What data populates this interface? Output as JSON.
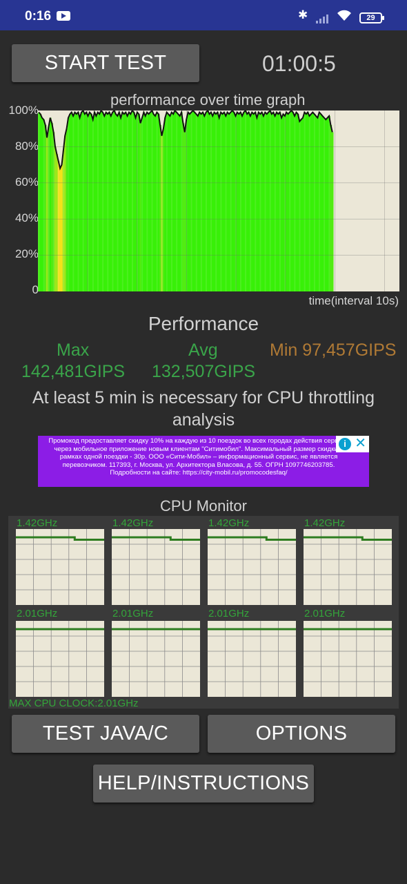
{
  "status_bar": {
    "time": "0:16",
    "battery": "29"
  },
  "controls": {
    "start_label": "START TEST",
    "timer": "01:00:5"
  },
  "graph": {
    "title": "performance over time graph",
    "y_ticks": [
      "100%",
      "80%",
      "60%",
      "40%",
      "20%",
      "0"
    ],
    "x_label": "time(interval 10s)"
  },
  "chart_data": {
    "type": "area",
    "title": "performance over time graph",
    "xlabel": "time(interval 10s)",
    "ylabel": "",
    "ylim": [
      0,
      100
    ],
    "y_unit": "%",
    "grid": true,
    "values": [
      99,
      98,
      96,
      95,
      92,
      85,
      91,
      96,
      93,
      88,
      80,
      76,
      72,
      68,
      70,
      78,
      86,
      90,
      96,
      98,
      99,
      97,
      99,
      98,
      99,
      96,
      99,
      100,
      98,
      99,
      97,
      99,
      98,
      95,
      99,
      97,
      99,
      98,
      100,
      99,
      97,
      99,
      98,
      99,
      97,
      99,
      100,
      98,
      97,
      99,
      96,
      99,
      98,
      99,
      97,
      99,
      98,
      100,
      99,
      96,
      99,
      98,
      93,
      96,
      99,
      97,
      99,
      98,
      99,
      100,
      98,
      97,
      99,
      98,
      92,
      86,
      90,
      96,
      99,
      98,
      97,
      99,
      98,
      100,
      99,
      98,
      97,
      99,
      93,
      88,
      95,
      99,
      98,
      99,
      100,
      99,
      98,
      97,
      99,
      98,
      99,
      97,
      99,
      100,
      98,
      99,
      97,
      99,
      98,
      99,
      96,
      99,
      98,
      99,
      97,
      99,
      98,
      99,
      100,
      99,
      97,
      99,
      98,
      99,
      97,
      99,
      100,
      98,
      99,
      97,
      99,
      98,
      99,
      96,
      99,
      98,
      99,
      97,
      99,
      98,
      99,
      100,
      98,
      99,
      97,
      99,
      98,
      99,
      96,
      98,
      97,
      99,
      98,
      99,
      100,
      99,
      97,
      99,
      98,
      94,
      95,
      96,
      99,
      98,
      99,
      97,
      98,
      99,
      98,
      97,
      96,
      99,
      98,
      97,
      96,
      95,
      96,
      97,
      92,
      88
    ]
  },
  "performance": {
    "title": "Performance",
    "max_label": "Max",
    "max_value": "142,481GIPS",
    "avg_label": "Avg",
    "avg_value": "132,507GIPS",
    "min_text": "Min 97,457GIPS",
    "note": "At least 5 min is necessary for CPU throttling analysis"
  },
  "ad": {
    "text": "Промокод предоставляет скидку 10% на каждую из 10 поездок во всех городах действия сервиса через мобильное приложение новым клиентам \"Ситимобил\". Максимальный размер скидки в рамках одной поездки - 30р. ООО «Сити-Мобил» – информационный сервис, не является перевозчиком. 117393, г. Москва, ул. Архитектора Власова, д. 55. ОГРН 1097746203785. Подробности на сайте: https://city-mobil.ru/promocodesfaq/",
    "info_icon": "info-icon",
    "close_icon": "close-icon"
  },
  "cpu_monitor": {
    "title": "CPU Monitor",
    "cores_row1": [
      {
        "freq": "1.42GHz",
        "levels": [
          1.0,
          1.0,
          0.82
        ]
      },
      {
        "freq": "1.42GHz",
        "levels": [
          1.0,
          1.0,
          0.82
        ]
      },
      {
        "freq": "1.42GHz",
        "levels": [
          1.0,
          1.0,
          0.82
        ]
      },
      {
        "freq": "1.42GHz",
        "levels": [
          1.0,
          1.0,
          0.82
        ]
      }
    ],
    "cores_row2": [
      {
        "freq": "2.01GHz",
        "levels": [
          1.0,
          1.0,
          1.0
        ]
      },
      {
        "freq": "2.01GHz",
        "levels": [
          1.0,
          1.0,
          1.0
        ]
      },
      {
        "freq": "2.01GHz",
        "levels": [
          1.0,
          1.0,
          1.0
        ]
      },
      {
        "freq": "2.01GHz",
        "levels": [
          1.0,
          1.0,
          1.0
        ]
      }
    ],
    "max_clock": "MAX CPU CLOCK:2.01GHz"
  },
  "buttons": {
    "java": "TEST JAVA/C",
    "options": "OPTIONS",
    "help": "HELP/INSTRUCTIONS"
  },
  "colors": {
    "status_bar": "#283593",
    "background": "#2b2b2b",
    "graph_bg": "#ebe7d7",
    "accent_green": "#3aa54a",
    "min_orange": "#b07a35"
  }
}
